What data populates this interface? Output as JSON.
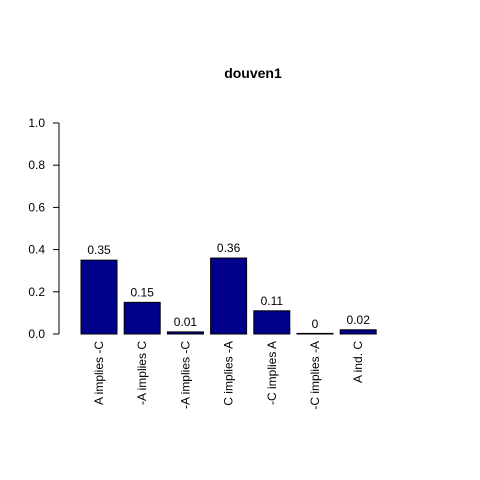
{
  "chart_data": {
    "type": "bar",
    "title": "douven1",
    "xlabel": "",
    "ylabel": "",
    "categories": [
      "A implies -C",
      "-A implies C",
      "-A implies -C",
      "C implies -A",
      "-C implies A",
      "-C implies -A",
      "A ind. C"
    ],
    "values": [
      0.35,
      0.15,
      0.01,
      0.36,
      0.11,
      0.0,
      0.02
    ],
    "value_labels": [
      "0.35",
      "0.15",
      "0.01",
      "0.36",
      "0.11",
      "0",
      "0.02"
    ],
    "ylim": [
      0,
      1
    ],
    "yticks": [
      0.0,
      0.2,
      0.4,
      0.6,
      0.8,
      1.0
    ],
    "ytick_labels": [
      "0.0",
      "0.2",
      "0.4",
      "0.6",
      "0.8",
      "1.0"
    ],
    "bar_color": "#00008B",
    "grid": false,
    "legend": "none"
  }
}
